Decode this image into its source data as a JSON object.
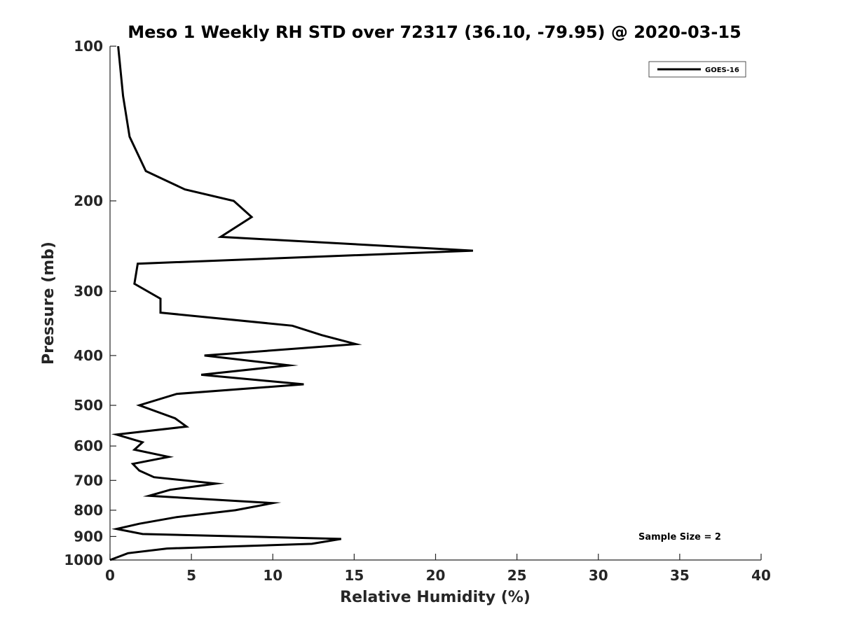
{
  "chart_data": {
    "type": "line",
    "title": "Meso 1 Weekly RH STD over 72317 (36.10, -79.95) @ 2020-03-15",
    "xlabel": "Relative Humidity (%)",
    "ylabel": "Pressure (mb)",
    "xlim": [
      0,
      40
    ],
    "ylim": [
      1000,
      100
    ],
    "yscale": "log",
    "y_reversed": true,
    "xticks": [
      0,
      5,
      10,
      15,
      20,
      25,
      30,
      35,
      40
    ],
    "yticks": [
      100,
      200,
      300,
      400,
      500,
      600,
      700,
      800,
      900,
      1000
    ],
    "grid": false,
    "legend_position": "top-right",
    "annotation": "Sample Size = 2",
    "series": [
      {
        "name": "GOES-16",
        "color": "#000000",
        "points": [
          [
            0.5,
            100
          ],
          [
            0.8,
            125
          ],
          [
            1.2,
            150
          ],
          [
            2.2,
            175
          ],
          [
            4.6,
            190
          ],
          [
            7.6,
            200
          ],
          [
            8.7,
            215
          ],
          [
            6.8,
            235
          ],
          [
            22.3,
            250
          ],
          [
            1.7,
            265
          ],
          [
            1.5,
            290
          ],
          [
            3.1,
            310
          ],
          [
            3.1,
            330
          ],
          [
            11.2,
            350
          ],
          [
            13.0,
            365
          ],
          [
            15.1,
            380
          ],
          [
            5.8,
            400
          ],
          [
            11.0,
            418
          ],
          [
            5.6,
            436
          ],
          [
            11.9,
            455
          ],
          [
            4.1,
            475
          ],
          [
            1.8,
            500
          ],
          [
            4.0,
            530
          ],
          [
            4.7,
            550
          ],
          [
            0.4,
            570
          ],
          [
            2.0,
            590
          ],
          [
            1.5,
            610
          ],
          [
            3.6,
            630
          ],
          [
            1.4,
            650
          ],
          [
            1.8,
            670
          ],
          [
            2.7,
            690
          ],
          [
            6.5,
            710
          ],
          [
            3.7,
            730
          ],
          [
            2.4,
            750
          ],
          [
            10.0,
            775
          ],
          [
            7.7,
            800
          ],
          [
            4.1,
            825
          ],
          [
            1.8,
            850
          ],
          [
            0.4,
            870
          ],
          [
            2.0,
            890
          ],
          [
            14.2,
            910
          ],
          [
            12.4,
            930
          ],
          [
            3.5,
            950
          ],
          [
            1.1,
            970
          ],
          [
            0.0,
            1000
          ]
        ]
      }
    ]
  }
}
